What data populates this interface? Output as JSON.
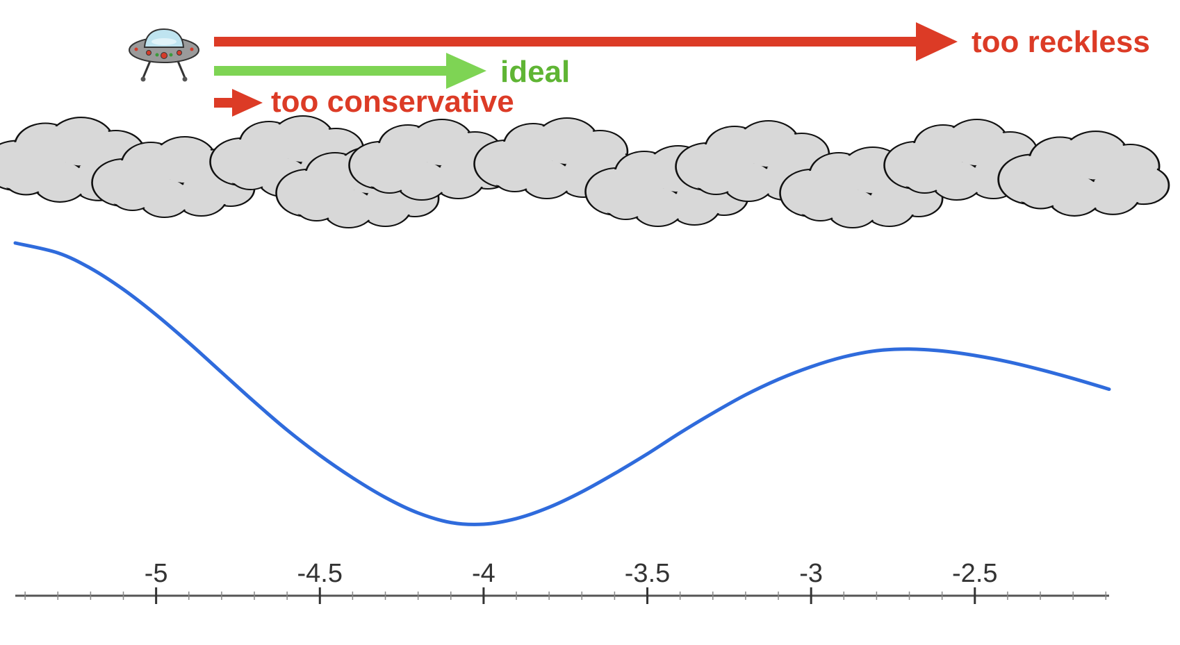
{
  "labels": {
    "too_reckless": "too reckless",
    "ideal": "ideal",
    "too_conservative": "too conservative"
  },
  "colors": {
    "reckless": "#dc3b26",
    "ideal": "#7ed454",
    "ideal_text": "#5fb534",
    "conservative": "#dc3b26",
    "curve": "#2f6bdc",
    "cloud_fill": "#d8d8d8",
    "cloud_stroke": "#111111",
    "axis": "#555555"
  },
  "icons": {
    "ufo": "ufo-icon",
    "cloud": "cloud-icon"
  },
  "chart_data": {
    "type": "line",
    "xlim": [
      -5.43,
      -2.09
    ],
    "xticks": [
      -5,
      -4.5,
      -4,
      -3.5,
      -3,
      -2.5
    ],
    "xtick_labels": [
      "-5",
      "-4.5",
      "-4",
      "-3.5",
      "-3",
      "-2.5"
    ],
    "minor_tick_step": 0.1,
    "grid": false,
    "x": [
      -5.43,
      -5.3,
      -5.2,
      -5.1,
      -5.0,
      -4.9,
      -4.8,
      -4.7,
      -4.6,
      -4.5,
      -4.4,
      -4.3,
      -4.2,
      -4.1,
      -4.0,
      -3.9,
      -3.8,
      -3.7,
      -3.6,
      -3.5,
      -3.4,
      -3.3,
      -3.2,
      -3.1,
      -3.0,
      -2.9,
      -2.8,
      -2.7,
      -2.6,
      -2.5,
      -2.4,
      -2.3,
      -2.2,
      -2.09
    ],
    "y": [
      1.0,
      0.965,
      0.91,
      0.835,
      0.745,
      0.645,
      0.54,
      0.435,
      0.335,
      0.245,
      0.165,
      0.095,
      0.04,
      0.006,
      0.0,
      0.02,
      0.06,
      0.115,
      0.18,
      0.25,
      0.325,
      0.395,
      0.46,
      0.515,
      0.56,
      0.595,
      0.617,
      0.623,
      0.616,
      0.6,
      0.578,
      0.55,
      0.518,
      0.48
    ]
  }
}
